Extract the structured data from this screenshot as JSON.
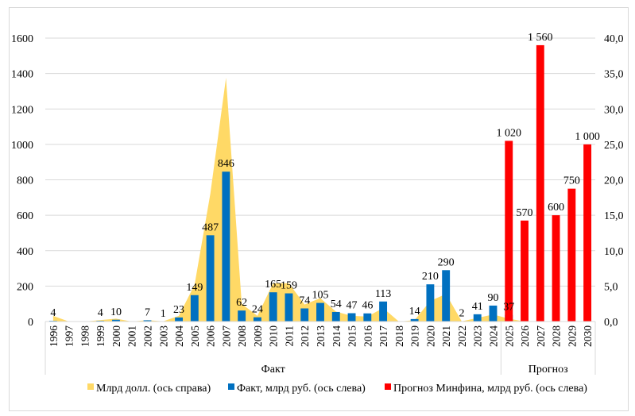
{
  "chart_data": {
    "type": "bar",
    "title": "",
    "categories": [
      "1996",
      "1997",
      "1998",
      "1999",
      "2000",
      "2001",
      "2002",
      "2003",
      "2004",
      "2005",
      "2006",
      "2007",
      "2008",
      "2009",
      "2010",
      "2011",
      "2012",
      "2013",
      "2014",
      "2015",
      "2016",
      "2017",
      "2018",
      "2019",
      "2020",
      "2021",
      "2022",
      "2023",
      "2024",
      "2025",
      "2026",
      "2027",
      "2028",
      "2029",
      "2030"
    ],
    "groups": [
      {
        "label": "Факт",
        "from": "1996",
        "to": "2024"
      },
      {
        "label": "Прогноз",
        "from": "2025",
        "to": "2030"
      }
    ],
    "left_axis": {
      "min": 0,
      "max": 1600,
      "step": 200,
      "ticks": [
        "0",
        "200",
        "400",
        "600",
        "800",
        "1000",
        "1200",
        "1400",
        "1600"
      ]
    },
    "right_axis": {
      "min": 0,
      "max": 40,
      "step": 5,
      "ticks": [
        "0,0",
        "5,0",
        "10,0",
        "15,0",
        "20,0",
        "25,0",
        "30,0",
        "35,0",
        "40,0"
      ]
    },
    "grid": true,
    "legend_position": "bottom",
    "series": [
      {
        "name": "Млрд долл. (ось справа)",
        "type": "area",
        "axis": "right",
        "color": "#FFD966",
        "values": [
          0.8,
          0,
          0,
          0.2,
          0.4,
          0,
          0.2,
          0.03,
          0.8,
          5.2,
          18.0,
          34.4,
          2.5,
          0.8,
          5.4,
          5.4,
          2.4,
          3.3,
          1.4,
          0.8,
          0.7,
          1.9,
          0,
          0.2,
          2.9,
          3.9,
          0.03,
          0.5,
          1.0,
          0.4,
          0,
          0,
          0,
          0,
          0
        ]
      },
      {
        "name": "Факт, млрд руб. (ось слева)",
        "type": "bar",
        "axis": "left",
        "color": "#0070C0",
        "values": [
          4,
          null,
          null,
          4,
          10,
          null,
          7,
          1,
          23,
          149,
          487,
          846,
          62,
          24,
          165,
          159,
          74,
          105,
          54,
          47,
          46,
          113,
          null,
          14,
          210,
          290,
          2,
          41,
          90,
          37,
          null,
          null,
          null,
          null,
          null
        ],
        "labels": [
          "4",
          "",
          "",
          "4",
          "10",
          "",
          "7",
          "1",
          "23",
          "149",
          "487",
          "846",
          "62",
          "24",
          "165",
          "159",
          "74",
          "105",
          "54",
          "47",
          "46",
          "113",
          "",
          "14",
          "210",
          "290",
          "2",
          "41",
          "90",
          "37",
          "",
          "",
          "",
          "",
          ""
        ]
      },
      {
        "name": "Прогноз Минфина, млрд руб. (ось слева)",
        "type": "bar",
        "axis": "left",
        "color": "#FF0000",
        "values": [
          null,
          null,
          null,
          null,
          null,
          null,
          null,
          null,
          null,
          null,
          null,
          null,
          null,
          null,
          null,
          null,
          null,
          null,
          null,
          null,
          null,
          null,
          null,
          null,
          null,
          null,
          null,
          null,
          null,
          1020,
          570,
          1560,
          600,
          750,
          1000
        ],
        "labels": [
          "",
          "",
          "",
          "",
          "",
          "",
          "",
          "",
          "",
          "",
          "",
          "",
          "",
          "",
          "",
          "",
          "",
          "",
          "",
          "",
          "",
          "",
          "",
          "",
          "",
          "",
          "",
          "",
          "",
          "1 020",
          "570",
          "1 560",
          "600",
          "750",
          "1 000"
        ]
      }
    ]
  }
}
